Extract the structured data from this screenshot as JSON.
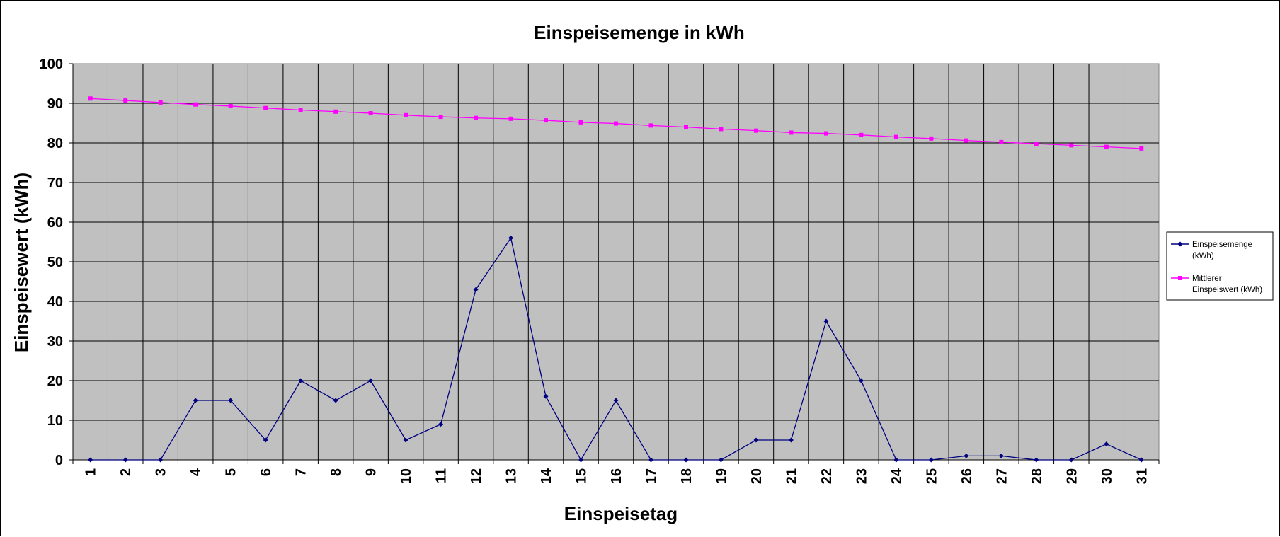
{
  "chart_data": {
    "type": "line",
    "title": "Einspeisemenge in kWh",
    "xlabel": "Einspeisetag",
    "ylabel": "Einspeisewert  (kWh)",
    "categories": [
      "1",
      "2",
      "3",
      "4",
      "5",
      "6",
      "7",
      "8",
      "9",
      "10",
      "11",
      "12",
      "13",
      "14",
      "15",
      "16",
      "17",
      "18",
      "19",
      "20",
      "21",
      "22",
      "23",
      "24",
      "25",
      "26",
      "27",
      "28",
      "29",
      "30",
      "31"
    ],
    "ylim": [
      0,
      100
    ],
    "yticks": [
      "0",
      "10",
      "20",
      "30",
      "40",
      "50",
      "60",
      "70",
      "80",
      "90",
      "100"
    ],
    "grid": true,
    "legend_position": "right",
    "plot_background": "#c0c0c0",
    "series": [
      {
        "name": "Einspeisemenge (kWh)",
        "legend_lines": [
          "Einspeisemenge",
          "(kWh)"
        ],
        "color": "#000080",
        "marker": "diamond",
        "values": [
          0,
          0,
          0,
          15,
          15,
          5,
          20,
          15,
          20,
          5,
          9,
          43,
          56,
          16,
          0,
          15,
          0,
          0,
          0,
          5,
          5,
          35,
          20,
          0,
          0,
          1,
          1,
          0,
          0,
          4,
          0
        ]
      },
      {
        "name": "Mittlerer Einspeiswert (kWh)",
        "legend_lines": [
          "Mittlerer",
          "Einspeiswert (kWh)"
        ],
        "color": "#ff00ff",
        "marker": "square",
        "values": [
          91.2,
          90.7,
          90.2,
          89.7,
          89.3,
          88.8,
          88.3,
          87.9,
          87.5,
          87.0,
          86.6,
          86.3,
          86.1,
          85.7,
          85.2,
          84.9,
          84.4,
          84.0,
          83.5,
          83.1,
          82.6,
          82.4,
          82.0,
          81.5,
          81.1,
          80.6,
          80.2,
          79.8,
          79.4,
          79.0,
          78.6
        ]
      }
    ]
  }
}
